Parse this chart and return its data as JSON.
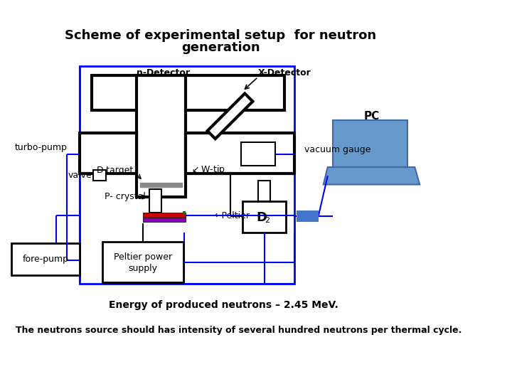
{
  "title_line1": "Scheme of experimental setup  for neutron",
  "title_line2": "generation",
  "energy_text": "Energy of produced neutrons – 2.45 MeV.",
  "bottom_text": "The neutrons source should has intensity of several hundred neutrons per thermal cycle.",
  "bg_color": "#ffffff",
  "blue": "#0000ff",
  "black": "#000000",
  "gray": "#888888",
  "blue_light": "#4477cc",
  "pc_blue": "#6699cc",
  "pc_border": "#4466aa"
}
